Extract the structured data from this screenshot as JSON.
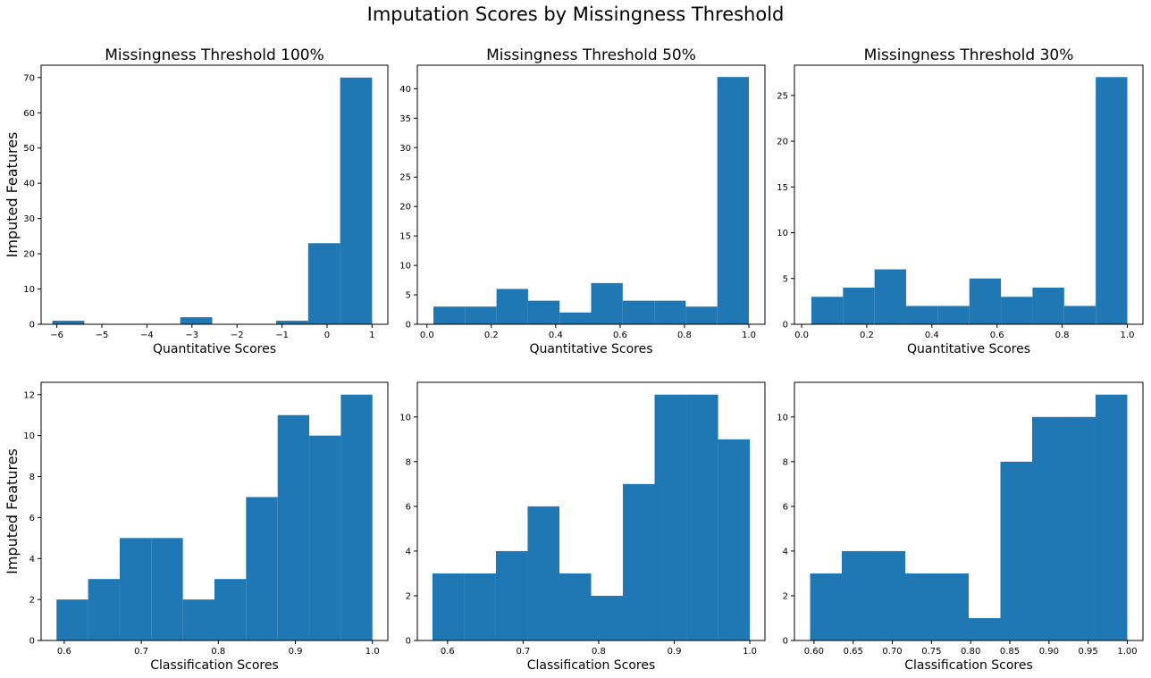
{
  "figure": {
    "title": "Imputation Scores by Missingness Threshold",
    "bar_color": "#1f77b4"
  },
  "chart_data": [
    {
      "type": "bar",
      "title": "Missingness Threshold 100%",
      "xlabel": "Quantitative Scores",
      "ylabel": "Imputed Features",
      "xlim": [
        -6.35,
        1.35
      ],
      "ylim": [
        0,
        73.5
      ],
      "xticks": [
        -6,
        -5,
        -4,
        -3,
        -2,
        -1,
        0,
        1
      ],
      "xtick_labels": [
        "−6",
        "−5",
        "−4",
        "−3",
        "−2",
        "−1",
        "0",
        "1"
      ],
      "yticks": [
        0,
        10,
        20,
        30,
        40,
        50,
        60,
        70
      ],
      "yticklabels": [
        "0",
        "10",
        "20",
        "30",
        "40",
        "50",
        "60",
        "70"
      ],
      "bin_edges": [
        -6.1,
        -5.39,
        -4.68,
        -3.97,
        -3.26,
        -2.55,
        -1.84,
        -1.13,
        -0.42,
        0.29,
        1.0
      ],
      "values": [
        1,
        0,
        0,
        0,
        2,
        0,
        0,
        1,
        23,
        70
      ]
    },
    {
      "type": "bar",
      "title": "Missingness Threshold 50%",
      "xlabel": "Quantitative Scores",
      "ylabel": "",
      "xlim": [
        -0.03,
        1.05
      ],
      "ylim": [
        0,
        44
      ],
      "xticks": [
        0,
        0.2,
        0.4,
        0.6,
        0.8,
        1.0
      ],
      "xtick_labels": [
        "0.0",
        "0.2",
        "0.4",
        "0.6",
        "0.8",
        "1.0"
      ],
      "yticks": [
        0,
        5,
        10,
        15,
        20,
        25,
        30,
        35,
        40
      ],
      "yticklabels": [
        "0",
        "5",
        "10",
        "15",
        "20",
        "25",
        "30",
        "35",
        "40"
      ],
      "bin_edges": [
        0.02,
        0.118,
        0.216,
        0.314,
        0.412,
        0.51,
        0.608,
        0.706,
        0.804,
        0.902,
        1.0
      ],
      "values": [
        3,
        3,
        6,
        4,
        2,
        7,
        4,
        4,
        3,
        42
      ]
    },
    {
      "type": "bar",
      "title": "Missingness Threshold 30%",
      "xlabel": "Quantitative Scores",
      "ylabel": "",
      "xlim": [
        -0.022,
        1.048
      ],
      "ylim": [
        0,
        28.3
      ],
      "xticks": [
        0,
        0.2,
        0.4,
        0.6,
        0.8,
        1.0
      ],
      "xtick_labels": [
        "0.0",
        "0.2",
        "0.4",
        "0.6",
        "0.8",
        "1.0"
      ],
      "yticks": [
        0,
        5,
        10,
        15,
        20,
        25
      ],
      "yticklabels": [
        "0",
        "5",
        "10",
        "15",
        "20",
        "25"
      ],
      "bin_edges": [
        0.03,
        0.127,
        0.224,
        0.321,
        0.418,
        0.515,
        0.612,
        0.709,
        0.806,
        0.903,
        1.0
      ],
      "values": [
        3,
        4,
        6,
        2,
        2,
        5,
        3,
        4,
        2,
        27
      ]
    },
    {
      "type": "bar",
      "title": "",
      "xlabel": "Classification Scores",
      "ylabel": "Imputed Features",
      "xlim": [
        0.57,
        1.02
      ],
      "ylim": [
        0,
        12.6
      ],
      "xticks": [
        0.6,
        0.7,
        0.8,
        0.9,
        1.0
      ],
      "xtick_labels": [
        "0.6",
        "0.7",
        "0.8",
        "0.9",
        "1.0"
      ],
      "yticks": [
        0,
        2,
        4,
        6,
        8,
        10,
        12
      ],
      "yticklabels": [
        "0",
        "2",
        "4",
        "6",
        "8",
        "10",
        "12"
      ],
      "bin_edges": [
        0.59,
        0.631,
        0.672,
        0.713,
        0.754,
        0.795,
        0.836,
        0.877,
        0.918,
        0.959,
        1.0
      ],
      "values": [
        2,
        3,
        5,
        5,
        2,
        3,
        7,
        11,
        10,
        12
      ]
    },
    {
      "type": "bar",
      "title": "",
      "xlabel": "Classification Scores",
      "ylabel": "",
      "xlim": [
        0.56,
        1.02
      ],
      "ylim": [
        0,
        11.55
      ],
      "xticks": [
        0.6,
        0.7,
        0.8,
        0.9,
        1.0
      ],
      "xtick_labels": [
        "0.6",
        "0.7",
        "0.8",
        "0.9",
        "1.0"
      ],
      "yticks": [
        0,
        2,
        4,
        6,
        8,
        10
      ],
      "yticklabels": [
        "0",
        "2",
        "4",
        "6",
        "8",
        "10"
      ],
      "bin_edges": [
        0.58,
        0.622,
        0.664,
        0.706,
        0.748,
        0.79,
        0.832,
        0.874,
        0.916,
        0.958,
        1.0
      ],
      "values": [
        3,
        3,
        4,
        6,
        3,
        2,
        7,
        11,
        11,
        9
      ]
    },
    {
      "type": "bar",
      "title": "",
      "xlabel": "Classification Scores",
      "ylabel": "",
      "xlim": [
        0.575,
        1.02
      ],
      "ylim": [
        0,
        11.55
      ],
      "xticks": [
        0.6,
        0.65,
        0.7,
        0.75,
        0.8,
        0.85,
        0.9,
        0.95,
        1.0
      ],
      "xtick_labels": [
        "0.60",
        "0.65",
        "0.70",
        "0.75",
        "0.80",
        "0.85",
        "0.90",
        "0.95",
        "1.00"
      ],
      "yticks": [
        0,
        2,
        4,
        6,
        8,
        10
      ],
      "yticklabels": [
        "0",
        "2",
        "4",
        "6",
        "8",
        "10"
      ],
      "bin_edges": [
        0.595,
        0.6355,
        0.676,
        0.7165,
        0.757,
        0.7975,
        0.838,
        0.8785,
        0.919,
        0.9595,
        1.0
      ],
      "values": [
        3,
        4,
        4,
        3,
        3,
        1,
        8,
        10,
        10,
        11
      ]
    }
  ]
}
